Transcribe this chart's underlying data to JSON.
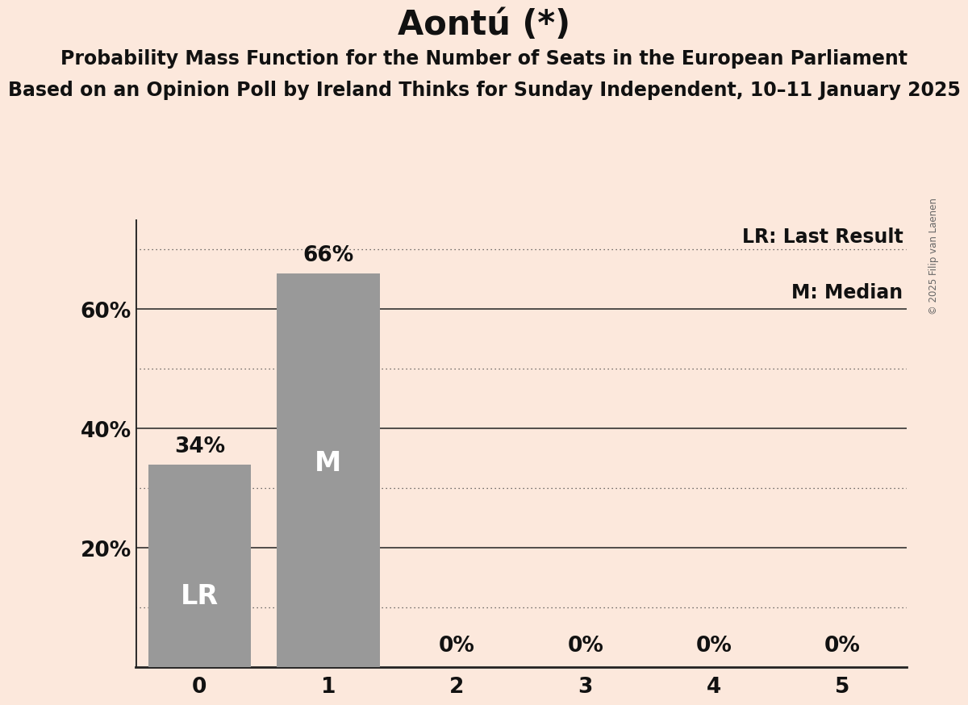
{
  "title": "Aontú (*)",
  "subtitle1": "Probability Mass Function for the Number of Seats in the European Parliament",
  "subtitle2": "Based on an Opinion Poll by Ireland Thinks for Sunday Independent, 10–11 January 2025",
  "copyright": "© 2025 Filip van Laenen",
  "categories": [
    0,
    1,
    2,
    3,
    4,
    5
  ],
  "values": [
    0.34,
    0.66,
    0.0,
    0.0,
    0.0,
    0.0
  ],
  "labels": [
    "34%",
    "66%",
    "0%",
    "0%",
    "0%",
    "0%"
  ],
  "bar_color": "#999999",
  "background_color": "#fce8dc",
  "text_color": "#111111",
  "bar_label_color_inside": "#ffffff",
  "bar_label_color_outside": "#111111",
  "lr_bar": 0,
  "median_bar": 1,
  "lr_label": "LR",
  "median_label": "M",
  "legend_lr": "LR: Last Result",
  "legend_m": "M: Median",
  "ylim": [
    0,
    0.75
  ],
  "yticks": [
    0.0,
    0.2,
    0.4,
    0.6
  ],
  "ytick_labels": [
    "",
    "20%",
    "40%",
    "60%"
  ],
  "solid_gridlines": [
    0.2,
    0.4,
    0.6
  ],
  "dotted_gridlines": [
    0.1,
    0.3,
    0.5,
    0.7
  ],
  "title_fontsize": 30,
  "subtitle_fontsize": 17,
  "axis_fontsize": 19,
  "bar_label_fontsize": 19,
  "inside_label_fontsize": 24,
  "legend_fontsize": 17
}
